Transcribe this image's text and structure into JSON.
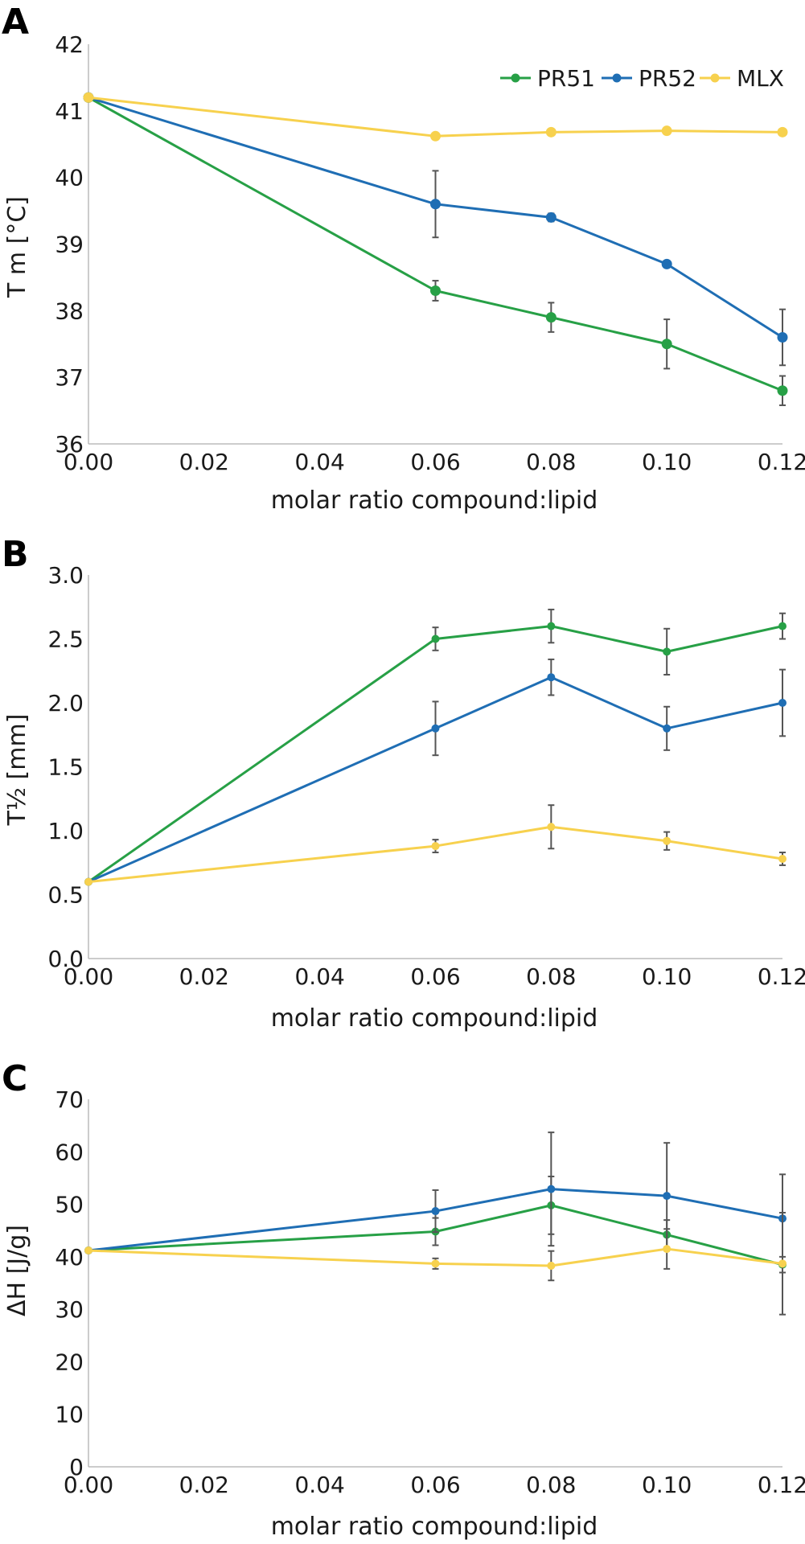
{
  "colors": {
    "PR51": "#27a046",
    "PR52": "#1f6eb4",
    "MLX": "#f7d14e",
    "error_bar": "#555555",
    "axis": "#bbbbbb"
  },
  "chart_data": [
    {
      "panel": "A",
      "type": "line",
      "title": "",
      "xlabel": "molar ratio compound:lipid",
      "ylabel": "T m [°C]",
      "xlim": [
        0,
        0.12
      ],
      "ylim": [
        36,
        42
      ],
      "xticks": [
        "0.00",
        "0.02",
        "0.04",
        "0.06",
        "0.08",
        "0.10",
        "0.12"
      ],
      "yticks": [
        "36",
        "37",
        "38",
        "39",
        "40",
        "41",
        "42"
      ],
      "legend": {
        "position": "top-right",
        "entries": [
          "PR51",
          "PR52",
          "MLX"
        ]
      },
      "grid": false,
      "series": [
        {
          "name": "PR51",
          "x": [
            0,
            0.06,
            0.08,
            0.1,
            0.12
          ],
          "y": [
            41.2,
            38.3,
            37.9,
            37.5,
            36.8
          ],
          "err": [
            0,
            0.15,
            0.22,
            0.37,
            0.22
          ]
        },
        {
          "name": "PR52",
          "x": [
            0,
            0.06,
            0.08,
            0.1,
            0.12
          ],
          "y": [
            41.2,
            39.6,
            39.4,
            38.7,
            37.6
          ],
          "err": [
            0,
            0.5,
            0.06,
            0.03,
            0.42
          ]
        },
        {
          "name": "MLX",
          "x": [
            0,
            0.06,
            0.08,
            0.1,
            0.12
          ],
          "y": [
            41.2,
            40.62,
            40.68,
            40.7,
            40.68
          ],
          "err": [
            0,
            0.04,
            0.03,
            0.03,
            0.03
          ]
        }
      ]
    },
    {
      "panel": "B",
      "type": "line",
      "title": "",
      "xlabel": "molar ratio compound:lipid",
      "ylabel": "T½ [mm]",
      "xlim": [
        0,
        0.12
      ],
      "ylim": [
        0,
        3.0
      ],
      "xticks": [
        "0.00",
        "0.02",
        "0.04",
        "0.06",
        "0.08",
        "0.10",
        "0.12"
      ],
      "yticks": [
        "0.0",
        "0.5",
        "1.0",
        "1.5",
        "2.0",
        "2.5",
        "3.0"
      ],
      "grid": false,
      "series": [
        {
          "name": "PR51",
          "x": [
            0,
            0.06,
            0.08,
            0.1,
            0.12
          ],
          "y": [
            0.6,
            2.5,
            2.6,
            2.4,
            2.6
          ],
          "err": [
            0,
            0.09,
            0.13,
            0.18,
            0.1
          ]
        },
        {
          "name": "PR52",
          "x": [
            0,
            0.06,
            0.08,
            0.1,
            0.12
          ],
          "y": [
            0.6,
            1.8,
            2.2,
            1.8,
            2.0
          ],
          "err": [
            0,
            0.21,
            0.14,
            0.17,
            0.26
          ]
        },
        {
          "name": "MLX",
          "x": [
            0,
            0.06,
            0.08,
            0.1,
            0.12
          ],
          "y": [
            0.6,
            0.88,
            1.03,
            0.92,
            0.78
          ],
          "err": [
            0,
            0.05,
            0.17,
            0.07,
            0.05
          ]
        }
      ]
    },
    {
      "panel": "C",
      "type": "line",
      "title": "",
      "xlabel": "molar ratio compound:lipid",
      "ylabel": "ΔH [J/g]",
      "xlim": [
        0,
        0.12
      ],
      "ylim": [
        0,
        70
      ],
      "xticks": [
        "0.00",
        "0.02",
        "0.04",
        "0.06",
        "0.08",
        "0.10",
        "0.12"
      ],
      "yticks": [
        "0",
        "10",
        "20",
        "30",
        "40",
        "50",
        "60",
        "70"
      ],
      "grid": false,
      "series": [
        {
          "name": "PR51",
          "x": [
            0,
            0.06,
            0.08,
            0.1,
            0.12
          ],
          "y": [
            41.2,
            44.8,
            49.8,
            44.2,
            38.5
          ],
          "err": [
            0,
            2.6,
            5.5,
            2.8,
            1.5
          ]
        },
        {
          "name": "PR52",
          "x": [
            0,
            0.06,
            0.08,
            0.1,
            0.12
          ],
          "y": [
            41.2,
            48.7,
            52.9,
            51.6,
            47.3
          ],
          "err": [
            0,
            4.0,
            10.8,
            10.1,
            8.4
          ]
        },
        {
          "name": "MLX",
          "x": [
            0,
            0.06,
            0.08,
            0.1,
            0.12
          ],
          "y": [
            41.2,
            38.7,
            38.3,
            41.5,
            38.7
          ],
          "err": [
            0,
            1.0,
            2.8,
            3.8,
            9.7
          ]
        }
      ]
    }
  ]
}
